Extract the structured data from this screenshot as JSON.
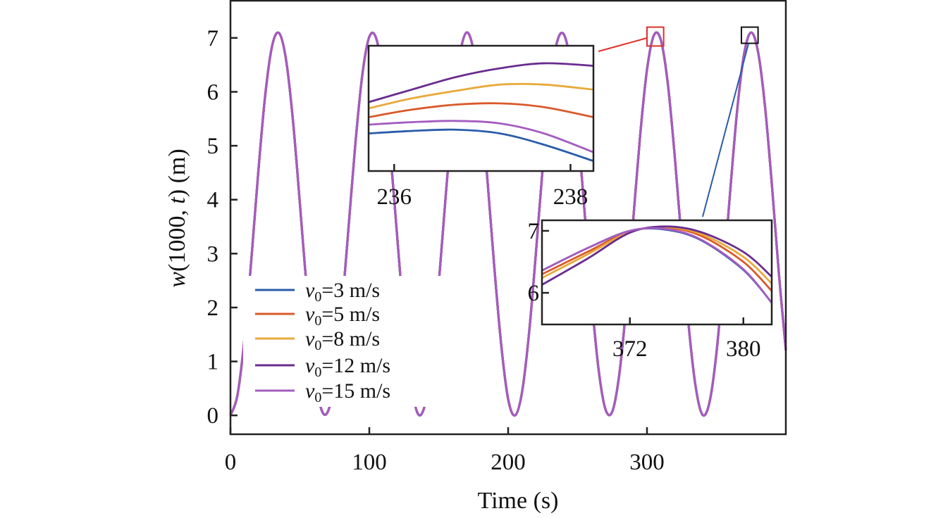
{
  "chart_data": {
    "type": "line",
    "xlabel": "Time (s)",
    "ylabel": {
      "pre": "w",
      "mid": "(1000, ",
      "t": "t",
      "post": ") (m)"
    },
    "xlim": [
      0,
      400
    ],
    "ylim": [
      -0.35,
      7.69
    ],
    "xticks": [
      0,
      100,
      200,
      300
    ],
    "yticks": [
      0,
      1,
      2,
      3,
      4,
      5,
      6,
      7
    ],
    "grid": false,
    "legend_placement": "bottom-left",
    "colors": {
      "v3": "#2a5caa",
      "v5": "#d95a2b",
      "v8": "#e8a93a",
      "v12": "#6a2c8e",
      "v15": "#a45cc0",
      "highlight_red": "#e0302a",
      "highlight_black": "#111111"
    },
    "x": [
      0,
      5,
      10,
      15,
      20,
      25,
      30,
      35,
      40,
      45,
      50,
      55,
      60,
      65,
      70,
      75,
      80,
      85,
      90,
      95,
      100,
      105,
      110,
      115,
      120,
      125,
      130,
      135,
      140,
      145,
      150,
      155,
      160,
      165,
      170,
      175,
      180,
      185,
      190,
      195,
      200,
      205,
      210,
      215,
      220,
      225,
      230,
      235,
      240,
      245,
      250,
      255,
      260,
      265,
      270,
      275,
      280,
      285,
      290,
      295,
      300,
      305,
      310,
      315,
      320,
      325,
      330,
      335,
      340,
      345,
      350,
      355,
      360,
      365,
      370,
      375,
      380,
      385,
      390,
      395,
      400
    ],
    "series": [
      {
        "name": "v0=3 m/s",
        "legend": {
          "v": "v",
          "sub": "0",
          "rest": "=3 m/s"
        },
        "color": "#2a5caa",
        "values": [
          0,
          0.37,
          1.4,
          2.88,
          4.5,
          5.93,
          6.85,
          7.09,
          6.6,
          5.47,
          3.93,
          2.32,
          0.97,
          0.15,
          0.06,
          0.67,
          1.9,
          3.47,
          5.05,
          6.32,
          7.02,
          6.99,
          6.24,
          4.93,
          3.34,
          1.78,
          0.62,
          0.03,
          0.19,
          1.06,
          2.44,
          4.06,
          5.56,
          6.65,
          7.1,
          6.78,
          5.83,
          4.39,
          2.76,
          1.31,
          0.3,
          0.0,
          0.43,
          1.51,
          3.01,
          4.63,
          6.02,
          6.9,
          7.07,
          6.52,
          5.36,
          3.79,
          2.19,
          0.88,
          0.12,
          0.07,
          0.75,
          2.01,
          3.6,
          5.17,
          6.41,
          7.05,
          6.96,
          6.15,
          4.8,
          3.21,
          1.67,
          0.54,
          0.01,
          0.24,
          1.15,
          2.57,
          4.18,
          5.67,
          6.71,
          7.1,
          6.74,
          5.73,
          4.26,
          2.63,
          1.21
        ]
      },
      {
        "name": "v0=5 m/s",
        "legend": {
          "v": "v",
          "sub": "0",
          "rest": "=5 m/s"
        },
        "color": "#d95a2b",
        "values": [
          0,
          0.37,
          1.4,
          2.88,
          4.5,
          5.93,
          6.85,
          7.09,
          6.6,
          5.47,
          3.93,
          2.32,
          0.97,
          0.15,
          0.06,
          0.67,
          1.9,
          3.47,
          5.05,
          6.32,
          7.02,
          6.99,
          6.24,
          4.93,
          3.34,
          1.78,
          0.62,
          0.03,
          0.19,
          1.06,
          2.44,
          4.06,
          5.56,
          6.65,
          7.1,
          6.78,
          5.83,
          4.39,
          2.76,
          1.31,
          0.3,
          0.0,
          0.43,
          1.51,
          3.01,
          4.63,
          6.02,
          6.9,
          7.07,
          6.52,
          5.36,
          3.79,
          2.19,
          0.88,
          0.12,
          0.07,
          0.75,
          2.01,
          3.6,
          5.17,
          6.41,
          7.05,
          6.96,
          6.15,
          4.8,
          3.21,
          1.67,
          0.54,
          0.01,
          0.24,
          1.15,
          2.57,
          4.18,
          5.67,
          6.71,
          7.1,
          6.74,
          5.73,
          4.26,
          2.63,
          1.21
        ]
      },
      {
        "name": "v0=8 m/s",
        "legend": {
          "v": "v",
          "sub": "0",
          "rest": "=8 m/s"
        },
        "color": "#e8a93a",
        "values": [
          0,
          0.37,
          1.4,
          2.88,
          4.5,
          5.93,
          6.85,
          7.09,
          6.6,
          5.47,
          3.93,
          2.32,
          0.97,
          0.15,
          0.06,
          0.67,
          1.9,
          3.47,
          5.05,
          6.32,
          7.02,
          6.99,
          6.24,
          4.93,
          3.34,
          1.78,
          0.62,
          0.03,
          0.19,
          1.06,
          2.44,
          4.06,
          5.56,
          6.65,
          7.1,
          6.78,
          5.83,
          4.39,
          2.76,
          1.31,
          0.3,
          0.0,
          0.43,
          1.51,
          3.01,
          4.63,
          6.02,
          6.9,
          7.07,
          6.52,
          5.36,
          3.79,
          2.19,
          0.88,
          0.12,
          0.07,
          0.75,
          2.01,
          3.6,
          5.17,
          6.41,
          7.05,
          6.96,
          6.15,
          4.8,
          3.21,
          1.67,
          0.54,
          0.01,
          0.24,
          1.15,
          2.57,
          4.18,
          5.67,
          6.71,
          7.1,
          6.74,
          5.73,
          4.26,
          2.63,
          1.21
        ]
      },
      {
        "name": "v0=12 m/s",
        "legend": {
          "v": "v",
          "sub": "0",
          "rest": "=12 m/s"
        },
        "color": "#6a2c8e",
        "values": [
          0,
          0.37,
          1.4,
          2.88,
          4.5,
          5.93,
          6.85,
          7.09,
          6.6,
          5.47,
          3.93,
          2.32,
          0.97,
          0.15,
          0.06,
          0.67,
          1.9,
          3.47,
          5.05,
          6.32,
          7.02,
          6.99,
          6.24,
          4.93,
          3.34,
          1.78,
          0.62,
          0.03,
          0.19,
          1.06,
          2.44,
          4.06,
          5.56,
          6.65,
          7.1,
          6.78,
          5.83,
          4.39,
          2.76,
          1.31,
          0.3,
          0.0,
          0.43,
          1.51,
          3.01,
          4.63,
          6.02,
          6.9,
          7.07,
          6.52,
          5.36,
          3.79,
          2.19,
          0.88,
          0.12,
          0.07,
          0.75,
          2.01,
          3.6,
          5.17,
          6.41,
          7.05,
          6.96,
          6.15,
          4.8,
          3.21,
          1.67,
          0.54,
          0.01,
          0.24,
          1.15,
          2.57,
          4.18,
          5.67,
          6.71,
          7.1,
          6.74,
          5.73,
          4.26,
          2.63,
          1.21
        ]
      },
      {
        "name": "v0=15 m/s",
        "legend": {
          "v": "v",
          "sub": "0",
          "rest": "=15 m/s"
        },
        "color": "#a45cc0",
        "values": [
          0,
          0.37,
          1.4,
          2.88,
          4.5,
          5.93,
          6.85,
          7.09,
          6.6,
          5.47,
          3.93,
          2.32,
          0.97,
          0.15,
          0.06,
          0.67,
          1.9,
          3.47,
          5.05,
          6.32,
          7.02,
          6.99,
          6.24,
          4.93,
          3.34,
          1.78,
          0.62,
          0.03,
          0.19,
          1.06,
          2.44,
          4.06,
          5.56,
          6.65,
          7.1,
          6.78,
          5.83,
          4.39,
          2.76,
          1.31,
          0.3,
          0.0,
          0.43,
          1.51,
          3.01,
          4.63,
          6.02,
          6.9,
          7.07,
          6.52,
          5.36,
          3.79,
          2.19,
          0.88,
          0.12,
          0.07,
          0.75,
          2.01,
          3.6,
          5.17,
          6.41,
          7.05,
          6.96,
          6.15,
          4.8,
          3.21,
          1.67,
          0.54,
          0.01,
          0.24,
          1.15,
          2.57,
          4.18,
          5.67,
          6.71,
          7.1,
          6.74,
          5.73,
          4.26,
          2.63,
          1.21
        ]
      }
    ],
    "highlights": [
      {
        "color": "#e0302a",
        "xlim": [
          300,
          312
        ],
        "ylim": [
          6.85,
          7.2
        ],
        "zooms_to": "inset_1"
      },
      {
        "color": "#111111",
        "xlim": [
          368,
          380
        ],
        "ylim": [
          6.9,
          7.2
        ],
        "zooms_to": "inset_2"
      }
    ],
    "insets": [
      {
        "id": "inset_1",
        "xlim": [
          235.71,
          238.26
        ],
        "ylim": [
          0,
          1
        ],
        "xticks": [
          236,
          238
        ],
        "yticks": [],
        "connector_color": "#e0302a",
        "x": [
          235.71,
          236.2,
          236.7,
          237.2,
          237.7,
          238.26
        ],
        "series": [
          {
            "name": "v0=3 m/s",
            "values": [
              0.3,
              0.32,
              0.33,
              0.3,
              0.21,
              0.08
            ]
          },
          {
            "name": "v0=5 m/s",
            "values": [
              0.43,
              0.49,
              0.53,
              0.54,
              0.51,
              0.43
            ]
          },
          {
            "name": "v0=8 m/s",
            "values": [
              0.5,
              0.58,
              0.64,
              0.69,
              0.69,
              0.65
            ]
          },
          {
            "name": "v0=12 m/s",
            "values": [
              0.55,
              0.65,
              0.75,
              0.82,
              0.86,
              0.84
            ]
          },
          {
            "name": "v0=15 m/s",
            "values": [
              0.37,
              0.39,
              0.4,
              0.38,
              0.3,
              0.15
            ]
          }
        ]
      },
      {
        "id": "inset_2",
        "xlim": [
          365.8,
          382.0
        ],
        "ylim": [
          5.49,
          7.17
        ],
        "xticks": [
          372,
          380
        ],
        "yticks": [
          6,
          7
        ],
        "connector_color": "#2a5caa",
        "x": [
          365.8,
          369,
          372,
          374.5,
          377,
          380,
          382
        ],
        "series": [
          {
            "name": "v0=3 m/s",
            "values": [
              6.36,
              6.72,
              7.0,
              7.02,
              6.85,
              6.37,
              5.84
            ]
          },
          {
            "name": "v0=5 m/s",
            "values": [
              6.3,
              6.66,
              6.99,
              7.05,
              6.92,
              6.5,
              6.03
            ]
          },
          {
            "name": "v0=8 m/s",
            "values": [
              6.24,
              6.62,
              6.98,
              7.06,
              6.95,
              6.58,
              6.15
            ]
          },
          {
            "name": "v0=12 m/s",
            "values": [
              6.13,
              6.55,
              6.97,
              7.07,
              6.98,
              6.66,
              6.26
            ]
          },
          {
            "name": "v0=15 m/s",
            "values": [
              6.36,
              6.72,
              7.0,
              7.03,
              6.86,
              6.38,
              5.84
            ]
          }
        ]
      }
    ]
  }
}
